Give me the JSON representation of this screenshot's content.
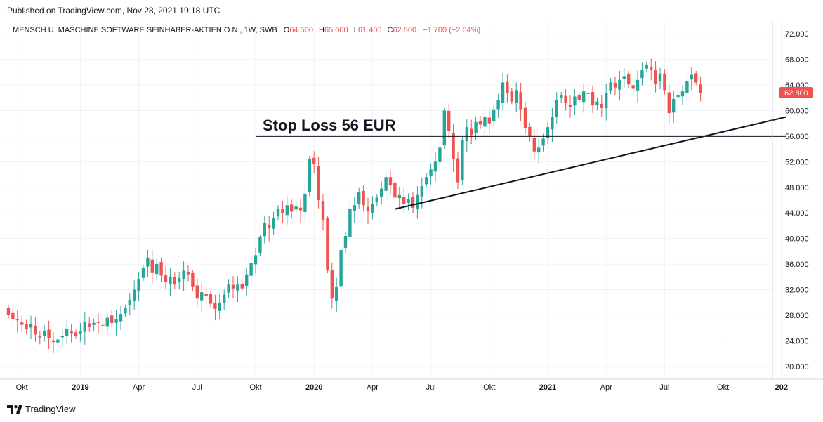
{
  "header": {
    "published": "Published on TradingView.com, Nov 28, 2021 19:18 UTC",
    "symbol_line": "MENSCH U. MASCHINE SOFTWARE SEINHABER-AKTIEN O.N., 1W, SWB",
    "ohlc": [
      {
        "key": "O",
        "val": "64.500"
      },
      {
        "key": "H",
        "val": "65.000"
      },
      {
        "key": "L",
        "val": "61.400"
      },
      {
        "key": "C",
        "val": "62.800"
      }
    ],
    "change": "−1.700 (−2.64%)"
  },
  "footer": {
    "brand": "TradingView"
  },
  "colors": {
    "up": "#26a69a",
    "down": "#ef5350",
    "grid": "#f0f3fa",
    "line": "#131722"
  },
  "chart_data": {
    "type": "candlestick",
    "title": "MENSCH U. MASCHINE SOFTWARE SEINHABER-AKTIEN O.N., 1W, SWB",
    "ylim": [
      18,
      74
    ],
    "y_ticks": [
      "72.000",
      "68.000",
      "64.000",
      "60.000",
      "56.000",
      "52.000",
      "48.000",
      "44.000",
      "40.000",
      "36.000",
      "32.000",
      "28.000",
      "24.000",
      "20.000"
    ],
    "last_price_label": "62.800",
    "last_price": 62.8,
    "x_ticks": [
      {
        "label": "Okt",
        "bold": false
      },
      {
        "label": "2019",
        "bold": true
      },
      {
        "label": "Apr",
        "bold": false
      },
      {
        "label": "Jul",
        "bold": false
      },
      {
        "label": "Okt",
        "bold": false
      },
      {
        "label": "2020",
        "bold": true
      },
      {
        "label": "Apr",
        "bold": false
      },
      {
        "label": "Jul",
        "bold": false
      },
      {
        "label": "Okt",
        "bold": false
      },
      {
        "label": "2021",
        "bold": true
      },
      {
        "label": "Apr",
        "bold": false
      },
      {
        "label": "Jul",
        "bold": false
      },
      {
        "label": "Okt",
        "bold": false
      },
      {
        "label": "202",
        "bold": true
      }
    ],
    "tick_week_index": [
      3,
      16,
      29,
      42,
      55,
      68,
      81,
      94,
      107,
      120,
      133,
      146,
      159,
      172
    ],
    "weekly_close": [
      28,
      27.4,
      27.2,
      26.5,
      25.8,
      26.6,
      25,
      24.5,
      25.6,
      24.4,
      23.8,
      24.2,
      24.8,
      25.8,
      25.2,
      24.8,
      25.6,
      27,
      26.2,
      26.8,
      26.8,
      26.4,
      27.6,
      26.8,
      27.4,
      28.2,
      29.2,
      30.4,
      32,
      33.6,
      35.4,
      37,
      34.6,
      36,
      34.2,
      33.2,
      34,
      32.8,
      33.8,
      35,
      34.4,
      32.4,
      30.6,
      31.6,
      31,
      29.8,
      29,
      30,
      31.2,
      32.8,
      32.2,
      32.8,
      32.2,
      34.4,
      36.2,
      37.4,
      40.2,
      42.4,
      41.6,
      43.2,
      44.6,
      44,
      45.2,
      44.2,
      45,
      44.4,
      47,
      52.4,
      51.6,
      46,
      42.8,
      35,
      30.6,
      32.4,
      38.2,
      40.4,
      44.6,
      45.2,
      47.2,
      45.2,
      44.2,
      45.4,
      46.4,
      47.8,
      49.6,
      48.4,
      46.4,
      46.8,
      45.4,
      46.2,
      44.8,
      46.8,
      48.2,
      49.6,
      50.8,
      52,
      54.2,
      60,
      56.8,
      52.4,
      48.8,
      55.4,
      57.4,
      56.2,
      58.2,
      57.8,
      59,
      58,
      60.2,
      61.6,
      64.4,
      62.8,
      61.4,
      63.2,
      60.2,
      57.2,
      56,
      53.6,
      54.2,
      55.6,
      57.4,
      59,
      61.6,
      62.4,
      61.2,
      60.6,
      62.2,
      61.6,
      63,
      62.6,
      60.8,
      61.4,
      60.4,
      62.8,
      64.4,
      63.6,
      64.8,
      65.4,
      64.2,
      63.4,
      64.8,
      66.4,
      67.2,
      66.4,
      64.2,
      65.8,
      63.2,
      59.6,
      61.8,
      62.4,
      63,
      64.6,
      65.6,
      64.4,
      62.8
    ],
    "annotations": [
      {
        "type": "horizontal_line",
        "label": "Stop Loss 56 EUR",
        "price": 56,
        "from_week": 55,
        "to_week": 173
      },
      {
        "type": "trend_line",
        "from": {
          "week": 86,
          "price": 44.6
        },
        "to": {
          "week": 173,
          "price": 59
        }
      }
    ]
  }
}
